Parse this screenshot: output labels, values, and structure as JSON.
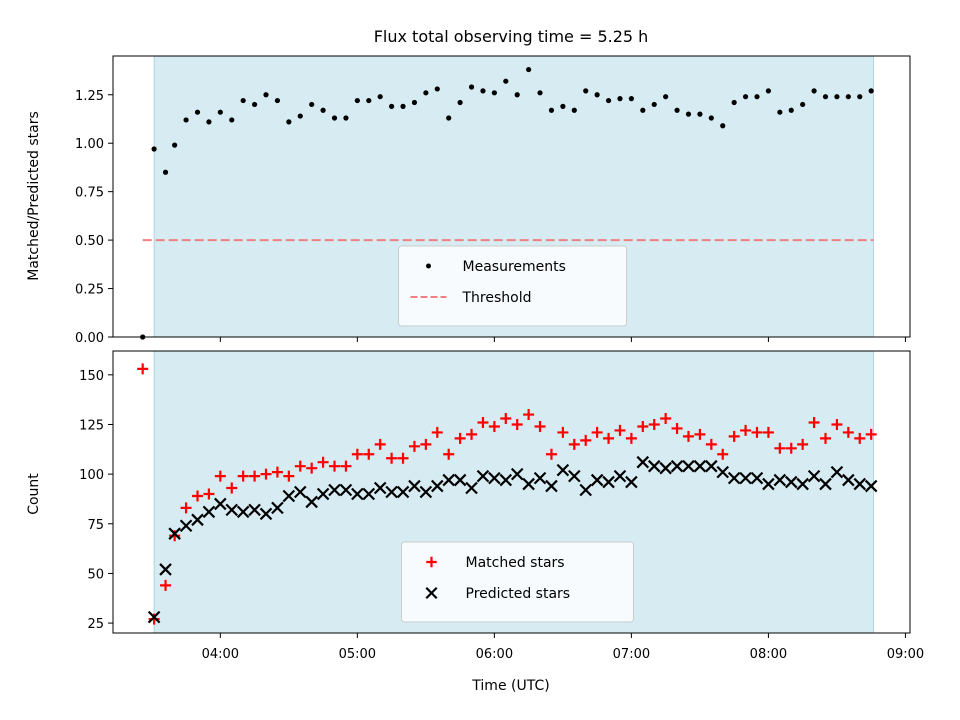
{
  "chart_data": {
    "type": "scatter",
    "title": "Flux total observing time = 5.25 h",
    "observing_window": {
      "start": "03:31",
      "end": "08:46",
      "color": "#add8e6"
    },
    "xlabel": "Time (UTC)",
    "xlim": [
      "03:13",
      "09:02"
    ],
    "xticks": [
      "04:00",
      "05:00",
      "06:00",
      "07:00",
      "08:00",
      "09:00"
    ],
    "panels": [
      {
        "id": "ratio",
        "ylabel": "Matched/Predicted stars",
        "ylim": [
          0,
          1.45
        ],
        "yticks": [
          "0.00",
          "0.25",
          "0.50",
          "0.75",
          "1.00",
          "1.25"
        ],
        "legend_position": "lower center",
        "series": [
          {
            "name": "Measurements",
            "marker": "dot",
            "color": "#000000",
            "points": [
              [
                "03:26",
                0.0
              ],
              [
                "03:31",
                0.97
              ],
              [
                "03:36",
                0.85
              ],
              [
                "03:40",
                0.99
              ],
              [
                "03:45",
                1.12
              ],
              [
                "03:50",
                1.16
              ],
              [
                "03:55",
                1.11
              ],
              [
                "04:00",
                1.16
              ],
              [
                "04:05",
                1.12
              ],
              [
                "04:10",
                1.22
              ],
              [
                "04:15",
                1.2
              ],
              [
                "04:20",
                1.25
              ],
              [
                "04:25",
                1.22
              ],
              [
                "04:30",
                1.11
              ],
              [
                "04:35",
                1.14
              ],
              [
                "04:40",
                1.2
              ],
              [
                "04:45",
                1.17
              ],
              [
                "04:50",
                1.13
              ],
              [
                "04:55",
                1.13
              ],
              [
                "05:00",
                1.22
              ],
              [
                "05:05",
                1.22
              ],
              [
                "05:10",
                1.24
              ],
              [
                "05:15",
                1.19
              ],
              [
                "05:20",
                1.19
              ],
              [
                "05:25",
                1.21
              ],
              [
                "05:30",
                1.26
              ],
              [
                "05:35",
                1.28
              ],
              [
                "05:40",
                1.13
              ],
              [
                "05:45",
                1.21
              ],
              [
                "05:50",
                1.29
              ],
              [
                "05:55",
                1.27
              ],
              [
                "06:00",
                1.26
              ],
              [
                "06:05",
                1.32
              ],
              [
                "06:10",
                1.25
              ],
              [
                "06:15",
                1.38
              ],
              [
                "06:20",
                1.26
              ],
              [
                "06:25",
                1.17
              ],
              [
                "06:30",
                1.19
              ],
              [
                "06:35",
                1.17
              ],
              [
                "06:40",
                1.27
              ],
              [
                "06:45",
                1.25
              ],
              [
                "06:50",
                1.22
              ],
              [
                "06:55",
                1.23
              ],
              [
                "07:00",
                1.23
              ],
              [
                "07:05",
                1.17
              ],
              [
                "07:10",
                1.2
              ],
              [
                "07:15",
                1.24
              ],
              [
                "07:20",
                1.17
              ],
              [
                "07:25",
                1.15
              ],
              [
                "07:30",
                1.15
              ],
              [
                "07:35",
                1.13
              ],
              [
                "07:40",
                1.09
              ],
              [
                "07:45",
                1.21
              ],
              [
                "07:50",
                1.24
              ],
              [
                "07:55",
                1.24
              ],
              [
                "08:00",
                1.27
              ],
              [
                "08:05",
                1.16
              ],
              [
                "08:10",
                1.17
              ],
              [
                "08:15",
                1.2
              ],
              [
                "08:20",
                1.27
              ],
              [
                "08:25",
                1.24
              ],
              [
                "08:30",
                1.24
              ],
              [
                "08:35",
                1.24
              ],
              [
                "08:40",
                1.24
              ],
              [
                "08:45",
                1.27
              ]
            ]
          },
          {
            "name": "Threshold",
            "marker": "dashed-line",
            "color": "#f08080",
            "value": 0.5,
            "x_range": [
              "03:26",
              "08:46"
            ]
          }
        ]
      },
      {
        "id": "counts",
        "ylabel": "Count",
        "ylim": [
          20,
          162
        ],
        "yticks": [
          "25",
          "50",
          "75",
          "100",
          "125",
          "150"
        ],
        "legend_position": "lower center",
        "series": [
          {
            "name": "Matched stars",
            "marker": "plus",
            "color": "#ff0000",
            "points": [
              [
                "03:26",
                153
              ],
              [
                "03:31",
                27
              ],
              [
                "03:36",
                44
              ],
              [
                "03:40",
                69
              ],
              [
                "03:45",
                83
              ],
              [
                "03:50",
                89
              ],
              [
                "03:55",
                90
              ],
              [
                "04:00",
                99
              ],
              [
                "04:05",
                93
              ],
              [
                "04:10",
                99
              ],
              [
                "04:15",
                99
              ],
              [
                "04:20",
                100
              ],
              [
                "04:25",
                101
              ],
              [
                "04:30",
                99
              ],
              [
                "04:35",
                104
              ],
              [
                "04:40",
                103
              ],
              [
                "04:45",
                106
              ],
              [
                "04:50",
                104
              ],
              [
                "04:55",
                104
              ],
              [
                "05:00",
                110
              ],
              [
                "05:05",
                110
              ],
              [
                "05:10",
                115
              ],
              [
                "05:15",
                108
              ],
              [
                "05:20",
                108
              ],
              [
                "05:25",
                114
              ],
              [
                "05:30",
                115
              ],
              [
                "05:35",
                121
              ],
              [
                "05:40",
                110
              ],
              [
                "05:45",
                118
              ],
              [
                "05:50",
                120
              ],
              [
                "05:55",
                126
              ],
              [
                "06:00",
                124
              ],
              [
                "06:05",
                128
              ],
              [
                "06:10",
                125
              ],
              [
                "06:15",
                130
              ],
              [
                "06:20",
                124
              ],
              [
                "06:25",
                110
              ],
              [
                "06:30",
                121
              ],
              [
                "06:35",
                115
              ],
              [
                "06:40",
                117
              ],
              [
                "06:45",
                121
              ],
              [
                "06:50",
                118
              ],
              [
                "06:55",
                122
              ],
              [
                "07:00",
                118
              ],
              [
                "07:05",
                124
              ],
              [
                "07:10",
                125
              ],
              [
                "07:15",
                128
              ],
              [
                "07:20",
                123
              ],
              [
                "07:25",
                119
              ],
              [
                "07:30",
                120
              ],
              [
                "07:35",
                115
              ],
              [
                "07:40",
                110
              ],
              [
                "07:45",
                119
              ],
              [
                "07:50",
                122
              ],
              [
                "07:55",
                121
              ],
              [
                "08:00",
                121
              ],
              [
                "08:05",
                113
              ],
              [
                "08:10",
                113
              ],
              [
                "08:15",
                115
              ],
              [
                "08:20",
                126
              ],
              [
                "08:25",
                118
              ],
              [
                "08:30",
                125
              ],
              [
                "08:35",
                121
              ],
              [
                "08:40",
                118
              ],
              [
                "08:45",
                120
              ]
            ]
          },
          {
            "name": "Predicted stars",
            "marker": "x",
            "color": "#000000",
            "points": [
              [
                "03:31",
                28
              ],
              [
                "03:36",
                52
              ],
              [
                "03:40",
                70
              ],
              [
                "03:45",
                74
              ],
              [
                "03:50",
                77
              ],
              [
                "03:55",
                81
              ],
              [
                "04:00",
                85
              ],
              [
                "04:05",
                82
              ],
              [
                "04:10",
                81
              ],
              [
                "04:15",
                82
              ],
              [
                "04:20",
                80
              ],
              [
                "04:25",
                83
              ],
              [
                "04:30",
                89
              ],
              [
                "04:35",
                91
              ],
              [
                "04:40",
                86
              ],
              [
                "04:45",
                90
              ],
              [
                "04:50",
                92
              ],
              [
                "04:55",
                92
              ],
              [
                "05:00",
                90
              ],
              [
                "05:05",
                90
              ],
              [
                "05:10",
                93
              ],
              [
                "05:15",
                91
              ],
              [
                "05:20",
                91
              ],
              [
                "05:25",
                94
              ],
              [
                "05:30",
                91
              ],
              [
                "05:35",
                94
              ],
              [
                "05:40",
                97
              ],
              [
                "05:45",
                97
              ],
              [
                "05:50",
                93
              ],
              [
                "05:55",
                99
              ],
              [
                "06:00",
                98
              ],
              [
                "06:05",
                97
              ],
              [
                "06:10",
                100
              ],
              [
                "06:15",
                95
              ],
              [
                "06:20",
                98
              ],
              [
                "06:25",
                94
              ],
              [
                "06:30",
                102
              ],
              [
                "06:35",
                99
              ],
              [
                "06:40",
                92
              ],
              [
                "06:45",
                97
              ],
              [
                "06:50",
                96
              ],
              [
                "06:55",
                99
              ],
              [
                "07:00",
                96
              ],
              [
                "07:05",
                106
              ],
              [
                "07:10",
                104
              ],
              [
                "07:15",
                103
              ],
              [
                "07:20",
                104
              ],
              [
                "07:25",
                104
              ],
              [
                "07:30",
                104
              ],
              [
                "07:35",
                104
              ],
              [
                "07:40",
                101
              ],
              [
                "07:45",
                98
              ],
              [
                "07:50",
                98
              ],
              [
                "07:55",
                98
              ],
              [
                "08:00",
                95
              ],
              [
                "08:05",
                97
              ],
              [
                "08:10",
                96
              ],
              [
                "08:15",
                95
              ],
              [
                "08:20",
                99
              ],
              [
                "08:25",
                95
              ],
              [
                "08:30",
                101
              ],
              [
                "08:35",
                97
              ],
              [
                "08:40",
                95
              ],
              [
                "08:45",
                94
              ]
            ]
          }
        ]
      }
    ]
  }
}
